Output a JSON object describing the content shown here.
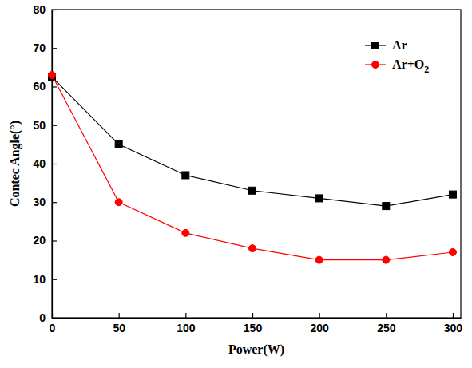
{
  "chart_data": {
    "type": "line",
    "x_label": "Power(W)",
    "y_label": "Contec Angle(°)",
    "x": [
      0,
      50,
      100,
      150,
      200,
      250,
      300
    ],
    "series": [
      {
        "name": "Ar",
        "color": "#000000",
        "marker": "square",
        "values": [
          62.5,
          45,
          37,
          33,
          31,
          29,
          32
        ]
      },
      {
        "name": "Ar+O2",
        "color": "#ff0000",
        "marker": "circle",
        "values": [
          63,
          30,
          22,
          18,
          15,
          15,
          17
        ]
      }
    ],
    "xlim": [
      0,
      306
    ],
    "xticks": [
      0,
      50,
      100,
      150,
      200,
      250,
      300
    ],
    "ylim": [
      0,
      80
    ],
    "yticks": [
      0,
      10,
      20,
      30,
      40,
      50,
      60,
      70,
      80
    ],
    "grid": false,
    "legend": "top-right"
  }
}
